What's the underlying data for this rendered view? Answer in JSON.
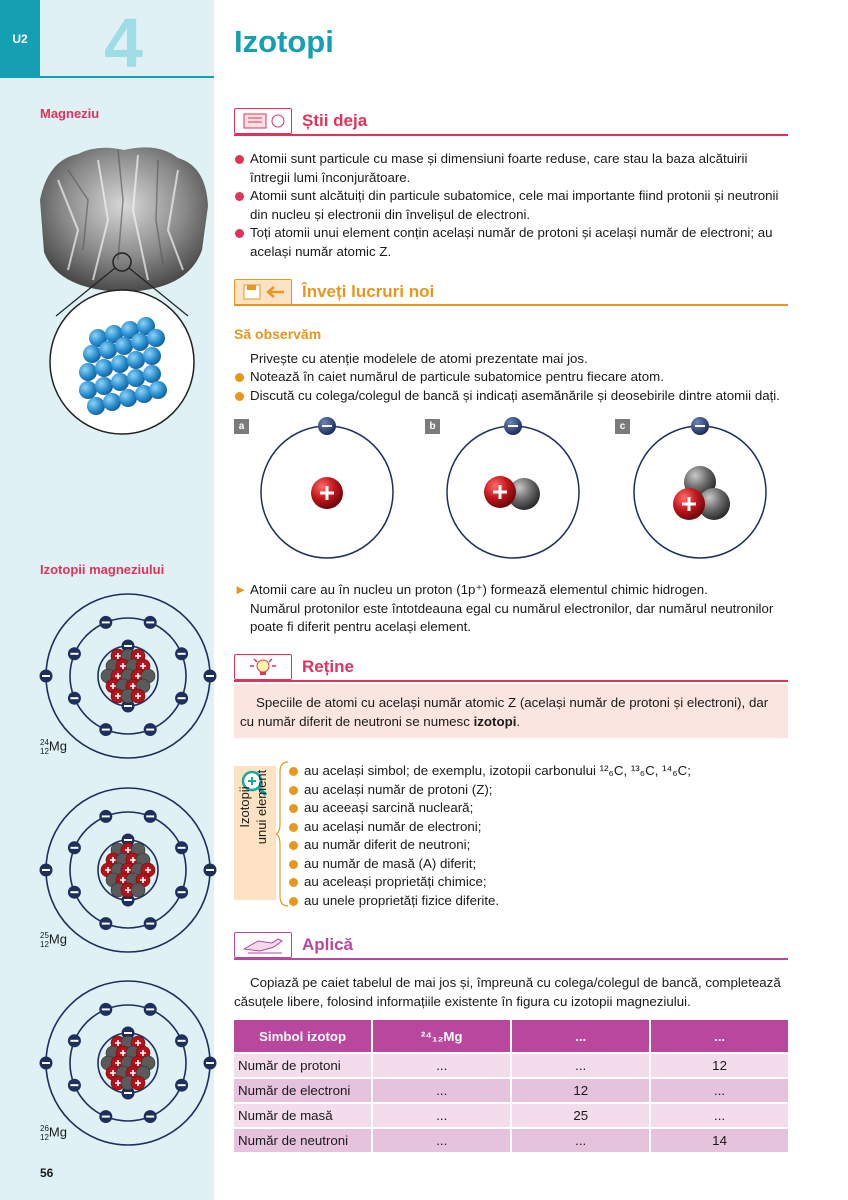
{
  "header": {
    "unit": "U2",
    "chapter_number": "4",
    "title": "Izotopi"
  },
  "sidebar": {
    "magnesium_title": "Magneziu",
    "isotopes_title": "Izotopii magneziului",
    "isotopes": [
      {
        "mass": "24",
        "z": "12",
        "symbol": "Mg"
      },
      {
        "mass": "25",
        "z": "12",
        "symbol": "Mg"
      },
      {
        "mass": "26",
        "z": "12",
        "symbol": "Mg"
      }
    ]
  },
  "stii_deja": {
    "heading": "Știi deja",
    "items": [
      "Atomii sunt particule cu mase și dimensiuni foarte reduse, care stau la baza alcătuirii întregii lumi înconjurătoare.",
      "Atomii sunt alcătuiți din particule subatomice, cele mai importante fiind protonii și neutronii din nucleu și electronii din învelișul de electroni.",
      "Toți atomii unui element conțin același număr de protoni și același număr de electroni; au același număr atomic Z."
    ]
  },
  "invati": {
    "heading": "Înveți lucruri noi",
    "subheading": "Să observăm",
    "intro": "Privește cu atenție modelele de atomi prezentate mai jos.",
    "items": [
      "Notează în caiet numărul de particule subatomice pentru fiecare atom.",
      "Discută cu colega/colegul de bancă și indicați asemănările și deosebirile dintre atomii dați."
    ],
    "atom_labels": [
      "a",
      "b",
      "c"
    ],
    "hydrogen_line1": "Atomii care au în nucleu un proton (1p⁺) formează elementul chimic hidrogen.",
    "hydrogen_line2": "Numărul protonilor este întotdeauna egal cu numărul electronilor, dar numărul neutronilor poate fi diferit pentru același element."
  },
  "retine": {
    "heading": "Reține",
    "text_before": "Speciile de atomi cu același număr atomic Z (același număr de protoni și electroni), dar cu număr diferit de neutroni se numesc ",
    "text_bold": "izotopi",
    "text_after": "."
  },
  "izotopi_props": {
    "side_label_1": "Izotopii",
    "side_label_2": "unui element",
    "carbon_notation": "¹²₆C, ¹³₆C, ¹⁴₆C;",
    "items": [
      "au același simbol; de exemplu, izotopii carbonului",
      "au același număr de protoni (Z);",
      "au aceeași sarcină nucleară;",
      "au același număr de electroni;",
      "au număr diferit de neutroni;",
      "au număr de masă (A) diferit;",
      "au aceleași proprietăți chimice;",
      "au unele proprietăți fizice diferite."
    ]
  },
  "aplica": {
    "heading": "Aplică",
    "instructions": "Copiază pe caiet tabelul de mai jos și, împreună cu colega/colegul de bancă, completează căsuțele libere, folosind informațiile existente în figura cu izotopii magneziului.",
    "table": {
      "headers": [
        "Simbol izotop",
        "²⁴₁₂Mg",
        "...",
        "..."
      ],
      "rows": [
        [
          "Număr de protoni",
          "...",
          "...",
          "12"
        ],
        [
          "Număr de electroni",
          "...",
          "12",
          "..."
        ],
        [
          "Număr de masă",
          "...",
          "25",
          "..."
        ],
        [
          "Număr de neutroni",
          "...",
          "...",
          "14"
        ]
      ]
    }
  },
  "footer": {
    "page_number": "56"
  },
  "colors": {
    "teal": "#159fb3",
    "red": "#e0335a",
    "orange": "#e8961c",
    "purple": "#b9479d"
  }
}
